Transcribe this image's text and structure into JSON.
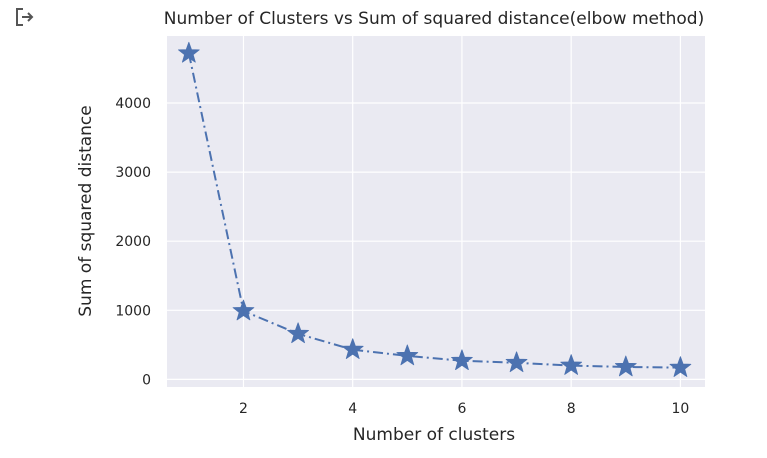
{
  "output_icon": "output-arrow-icon",
  "chart_data": {
    "type": "line",
    "title": "Number of Clusters vs Sum of squared distance(elbow method)",
    "xlabel": "Number of clusters",
    "ylabel": "Sum of squared distance",
    "x": [
      1,
      2,
      3,
      4,
      5,
      6,
      7,
      8,
      9,
      10
    ],
    "series": [
      {
        "values": [
          4720,
          990,
          660,
          430,
          340,
          270,
          240,
          200,
          180,
          170
        ],
        "color": "#4c72b0",
        "line_style": "dash-dot",
        "marker": "star"
      }
    ],
    "xlim": [
      0.6,
      10.45
    ],
    "ylim": [
      -110,
      4970
    ],
    "xticks": [
      2,
      4,
      6,
      8,
      10
    ],
    "yticks": [
      0,
      1000,
      2000,
      3000,
      4000
    ],
    "grid": true,
    "background": "#eaeaf2",
    "grid_color": "#ffffff"
  }
}
